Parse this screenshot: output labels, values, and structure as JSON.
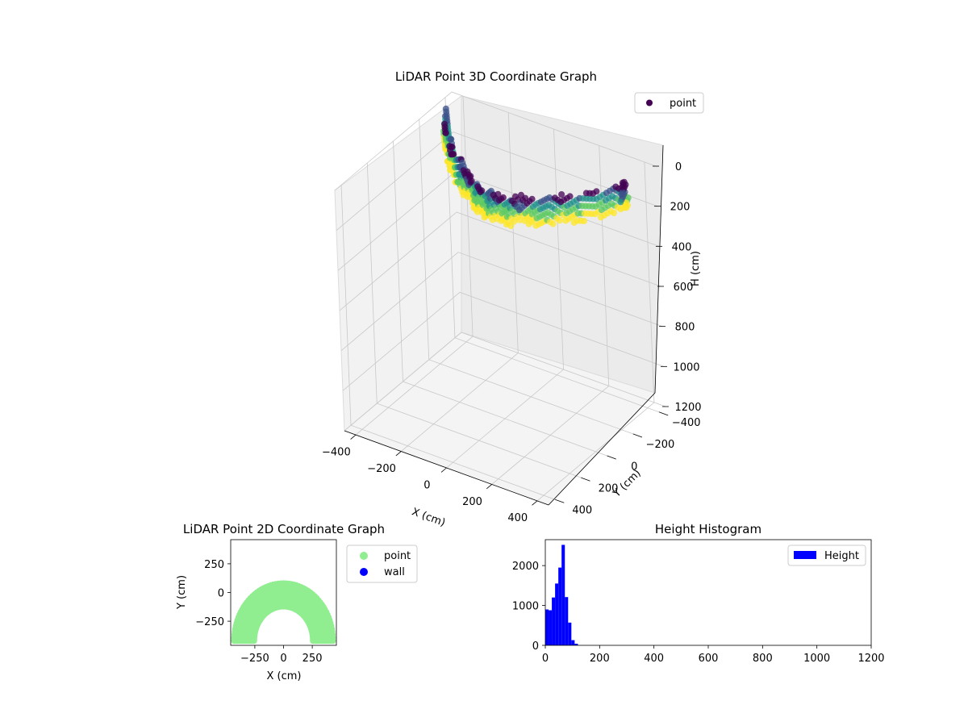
{
  "chart_data": [
    {
      "type": "scatter3d",
      "title": "LiDAR Point 3D Coordinate Graph",
      "xlabel": "X (cm)",
      "ylabel": "Y (cm)",
      "zlabel": "H (cm)",
      "xlim": [
        -450,
        450
      ],
      "ylim": [
        -450,
        450
      ],
      "zlim": [
        1200,
        0
      ],
      "xticks": [
        -400,
        -200,
        0,
        200,
        400
      ],
      "yticks": [
        -400,
        -200,
        0,
        200,
        400
      ],
      "zticks": [
        0,
        200,
        400,
        600,
        800,
        1000,
        1200
      ],
      "xtick_labels": [
        "−400",
        "−200",
        "0",
        "200",
        "400"
      ],
      "ytick_labels": [
        "−400",
        "−200",
        "0",
        "200",
        "400"
      ],
      "ztick_labels": [
        "0",
        "200",
        "400",
        "600",
        "800",
        "1000",
        "1200"
      ],
      "legend": {
        "position": "upper right",
        "entries": [
          {
            "label": "point",
            "color": "#440154"
          }
        ]
      },
      "colormap": "viridis",
      "grid": true,
      "series": [
        {
          "name": "point",
          "description_of_shape": "arched band of points (arc) from x≈-420 to x≈420, y between -350 and 100, heights 0–130 cm",
          "points": [
            {
              "x": -420,
              "y": -340,
              "h": 30
            },
            {
              "x": -380,
              "y": -280,
              "h": 55
            },
            {
              "x": -340,
              "y": -220,
              "h": 80
            },
            {
              "x": -300,
              "y": -170,
              "h": 40
            },
            {
              "x": -260,
              "y": -120,
              "h": 100
            },
            {
              "x": -220,
              "y": -80,
              "h": 60
            },
            {
              "x": -180,
              "y": -40,
              "h": 20
            },
            {
              "x": -140,
              "y": -10,
              "h": 70
            },
            {
              "x": -100,
              "y": 20,
              "h": 110
            },
            {
              "x": -60,
              "y": 50,
              "h": 45
            },
            {
              "x": -20,
              "y": 70,
              "h": 85
            },
            {
              "x": 20,
              "y": 80,
              "h": 30
            },
            {
              "x": 60,
              "y": 80,
              "h": 95
            },
            {
              "x": 100,
              "y": 70,
              "h": 50
            },
            {
              "x": 140,
              "y": 50,
              "h": 120
            },
            {
              "x": 180,
              "y": 20,
              "h": 65
            },
            {
              "x": 220,
              "y": -20,
              "h": 35
            },
            {
              "x": 260,
              "y": -60,
              "h": 90
            },
            {
              "x": 300,
              "y": -110,
              "h": 55
            },
            {
              "x": 340,
              "y": -170,
              "h": 75
            },
            {
              "x": 380,
              "y": -230,
              "h": 40
            },
            {
              "x": 410,
              "y": -290,
              "h": 105
            },
            {
              "x": 420,
              "y": -230,
              "h": 130
            }
          ]
        }
      ]
    },
    {
      "type": "scatter",
      "title": "LiDAR Point 2D Coordinate Graph",
      "xlabel": "X (cm)",
      "ylabel": "Y (cm)",
      "xlim": [
        -460,
        460
      ],
      "ylim": [
        -460,
        460
      ],
      "xticks": [
        -250,
        0,
        250
      ],
      "yticks": [
        -250,
        0,
        250
      ],
      "xtick_labels": [
        "−250",
        "0",
        "250"
      ],
      "ytick_labels": [
        "−250",
        "0",
        "250"
      ],
      "legend": {
        "position": "outside right",
        "entries": [
          {
            "label": "point",
            "color": "#90ee90"
          },
          {
            "label": "wall",
            "color": "#0000ff"
          }
        ]
      },
      "series": [
        {
          "name": "point",
          "color": "#90ee90",
          "description_of_shape": "arched band from x≈-430 to 430; top edge y≈90 near center, outer ends y≈-350",
          "outer_arc": {
            "center_x": 0,
            "center_y": -420,
            "radius": 510
          },
          "inner_arc": {
            "center_x": 0,
            "center_y": -420,
            "radius": 300
          },
          "x_range": [
            -430,
            430
          ]
        },
        {
          "name": "wall",
          "color": "#0000ff",
          "points": []
        }
      ]
    },
    {
      "type": "histogram",
      "title": "Height Histogram",
      "xlim": [
        0,
        1200
      ],
      "ylim": [
        0,
        2650
      ],
      "xticks": [
        0,
        200,
        400,
        600,
        800,
        1000,
        1200
      ],
      "yticks": [
        0,
        1000,
        2000
      ],
      "xtick_labels": [
        "0",
        "200",
        "400",
        "600",
        "800",
        "1000",
        "1200"
      ],
      "ytick_labels": [
        "0",
        "1000",
        "2000"
      ],
      "legend": {
        "position": "upper right",
        "entries": [
          {
            "label": "Height",
            "color": "#0000ff"
          }
        ]
      },
      "series": [
        {
          "name": "Height",
          "color": "#0000ff",
          "bin_width": 12,
          "bin_start": 0,
          "values": [
            900,
            880,
            1200,
            1550,
            1950,
            2520,
            1210,
            570,
            130,
            40,
            0
          ]
        }
      ]
    }
  ]
}
